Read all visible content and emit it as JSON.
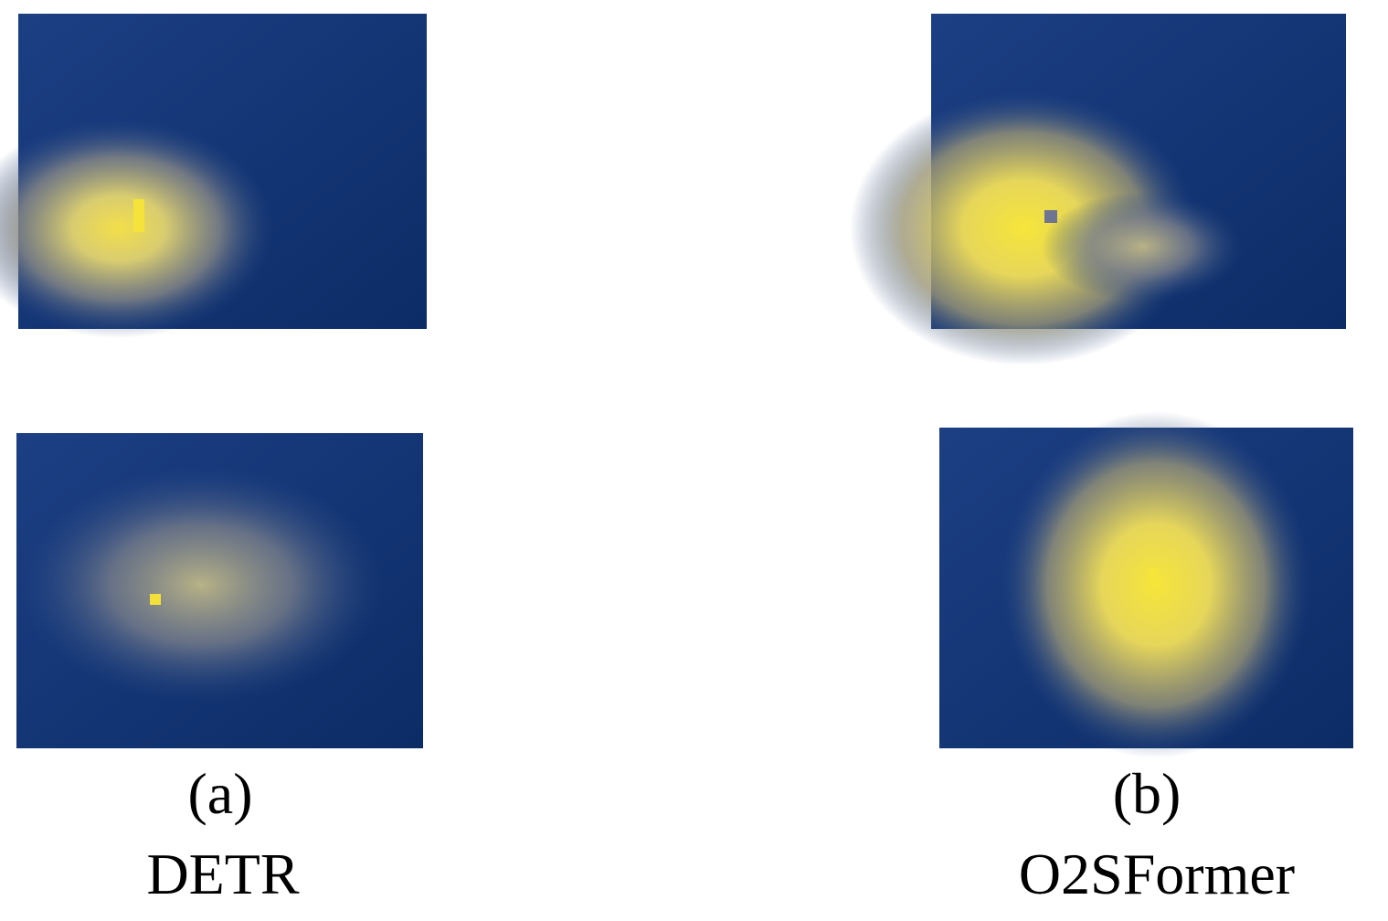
{
  "panels": [
    {
      "label": "(a)",
      "name": "DETR"
    },
    {
      "label": "(b)",
      "name": "O2SFormer"
    }
  ]
}
